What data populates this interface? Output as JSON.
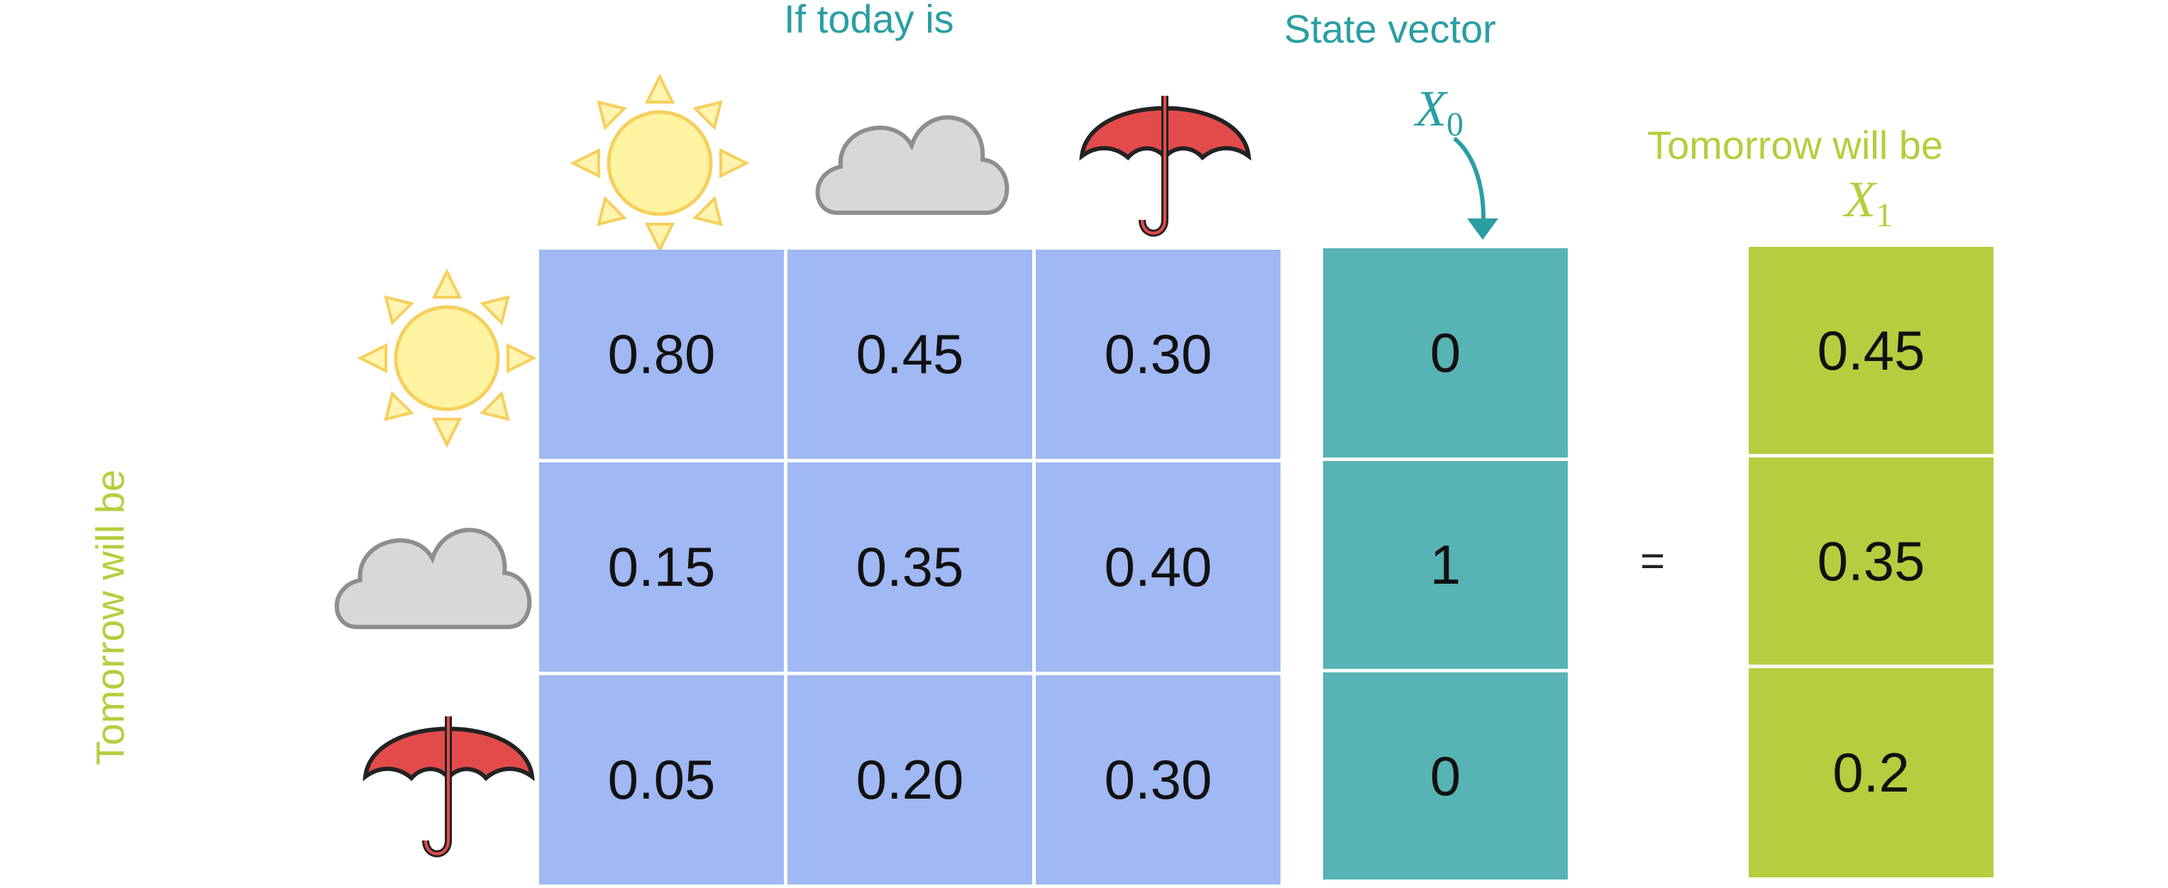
{
  "header": {
    "if_today": "If today is",
    "state_vector": "State vector",
    "tomorrow_top": "Tomorrow will be",
    "tomorrow_side": "Tomorrow will be"
  },
  "math": {
    "x0_base": "X",
    "x0_sub": "0",
    "x1_base": "X",
    "x1_sub": "1",
    "equals": "="
  },
  "weather_states": [
    "sun-icon",
    "cloud-icon",
    "umbrella-icon"
  ],
  "transition_matrix": [
    [
      "0.80",
      "0.45",
      "0.30"
    ],
    [
      "0.15",
      "0.35",
      "0.40"
    ],
    [
      "0.05",
      "0.20",
      "0.30"
    ]
  ],
  "state_vector": [
    "0",
    "1",
    "0"
  ],
  "result_vector": [
    "0.45",
    "0.35",
    "0.2"
  ],
  "colors": {
    "matrix": "#a0b8f3",
    "state_vector": "#57b3b4",
    "result_vector": "#b8cc40",
    "teal_text": "#2a9ea3",
    "green_text": "#b7cc3e"
  }
}
